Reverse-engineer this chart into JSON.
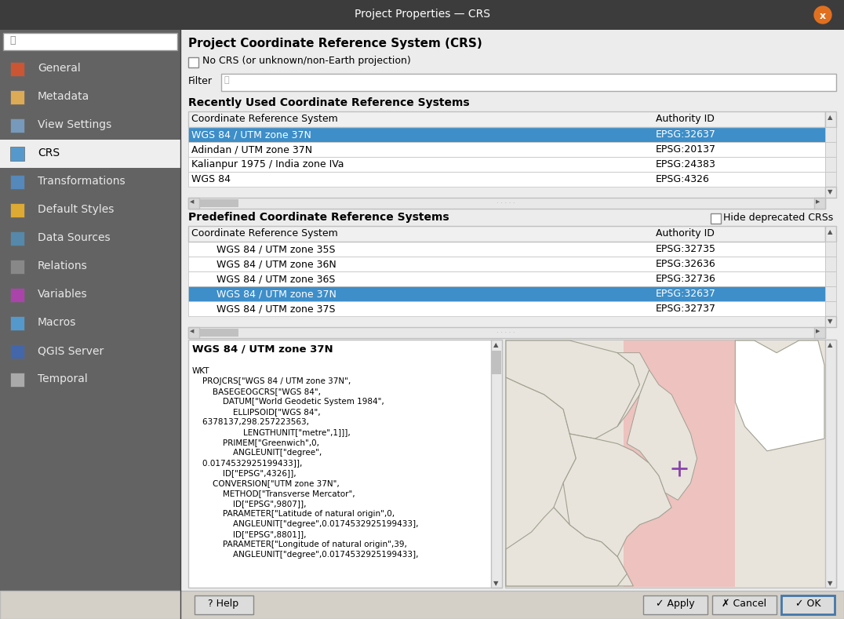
{
  "title": "Project Properties — CRS",
  "title_bg": "#3c3c3c",
  "title_fg": "#ffffff",
  "close_btn_color": "#e07020",
  "sidebar_bg": "#636363",
  "sidebar_selected_bg": "#eeeeee",
  "sidebar_selected_fg": "#000000",
  "sidebar_fg": "#e8e8e8",
  "sidebar_items": [
    "General",
    "Metadata",
    "View Settings",
    "CRS",
    "Transformations",
    "Default Styles",
    "Data Sources",
    "Relations",
    "Variables",
    "Macros",
    "QGIS Server",
    "Temporal"
  ],
  "sidebar_selected_idx": 3,
  "main_bg": "#ececec",
  "section_title1": "Project Coordinate Reference System (CRS)",
  "checkbox_label": "No CRS (or unknown/non-Earth projection)",
  "filter_label": "Filter",
  "section_recent": "Recently Used Coordinate Reference Systems",
  "recent_headers": [
    "Coordinate Reference System",
    "Authority ID"
  ],
  "recent_rows": [
    [
      "WGS 84 / UTM zone 37N",
      "EPSG:32637"
    ],
    [
      "Adindan / UTM zone 37N",
      "EPSG:20137"
    ],
    [
      "Kalianpur 1975 / India zone IVa",
      "EPSG:24383"
    ],
    [
      "WGS 84",
      "EPSG:4326"
    ]
  ],
  "recent_selected_idx": 0,
  "section_predefined": "Predefined Coordinate Reference Systems",
  "hide_deprecated_label": "Hide deprecated CRSs",
  "predefined_headers": [
    "Coordinate Reference System",
    "Authority ID"
  ],
  "predefined_rows": [
    [
      "        WGS 84 / UTM zone 35S",
      "EPSG:32735"
    ],
    [
      "        WGS 84 / UTM zone 36N",
      "EPSG:32636"
    ],
    [
      "        WGS 84 / UTM zone 36S",
      "EPSG:32736"
    ],
    [
      "        WGS 84 / UTM zone 37N",
      "EPSG:32637"
    ],
    [
      "        WGS 84 / UTM zone 37S",
      "EPSG:32737"
    ]
  ],
  "predefined_selected_idx": 3,
  "selected_row_bg": "#3d8ec9",
  "selected_row_fg": "#ffffff",
  "table_header_bg": "#f0f0f0",
  "table_row_bg": "#ffffff",
  "table_border": "#c0c0c0",
  "wkt_title": "WGS 84 / UTM zone 37N",
  "wkt_lines": [
    "",
    "WKT",
    "    PROJCRS[\"WGS 84 / UTM zone 37N\",",
    "        BASEGEOGCRS[\"WGS 84\",",
    "            DATUM[\"World Geodetic System 1984\",",
    "                ELLIPSOID[\"WGS 84\",",
    "    6378137,298.257223563,",
    "                    LENGTHUNIT[\"metre\",1]]],",
    "            PRIMEM[\"Greenwich\",0,",
    "                ANGLEUNIT[\"degree\",",
    "    0.0174532925199433]],",
    "            ID[\"EPSG\",4326]],",
    "        CONVERSION[\"UTM zone 37N\",",
    "            METHOD[\"Transverse Mercator\",",
    "                ID[\"EPSG\",9807]],",
    "            PARAMETER[\"Latitude of natural origin\",0,",
    "                ANGLEUNIT[\"degree\",0.0174532925199433],",
    "                ID[\"EPSG\",8801]],",
    "            PARAMETER[\"Longitude of natural origin\",39,",
    "                ANGLEUNIT[\"degree\",0.0174532925199433],"
  ],
  "bottom_bg": "#d4d0c8",
  "btn_help": "Help",
  "btn_apply": "Apply",
  "btn_cancel": "Cancel",
  "btn_ok": "OK",
  "map_land_color": "#e8e4dc",
  "map_border_color": "#a0a090",
  "map_sea_color": "#f0ede8",
  "map_highlight_color": "#f0b0b0",
  "map_highlight_alpha": 0.65,
  "map_plus_color": "#8844aa"
}
